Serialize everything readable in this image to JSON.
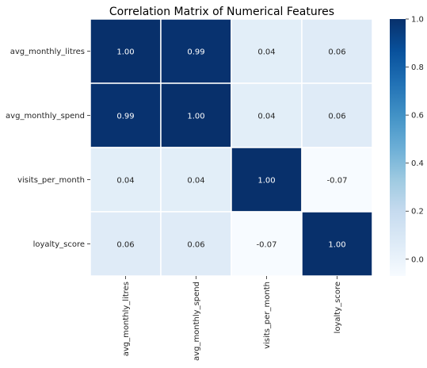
{
  "chart_data": {
    "type": "heatmap",
    "title": "Correlation Matrix of Numerical Features",
    "xlabels": [
      "avg_monthly_litres",
      "avg_monthly_spend",
      "visits_per_month",
      "loyalty_score"
    ],
    "ylabels": [
      "avg_monthly_litres",
      "avg_monthly_spend",
      "visits_per_month",
      "loyalty_score"
    ],
    "values": [
      [
        1.0,
        0.99,
        0.04,
        0.06
      ],
      [
        0.99,
        1.0,
        0.04,
        0.06
      ],
      [
        0.04,
        0.04,
        1.0,
        -0.07
      ],
      [
        0.06,
        0.06,
        -0.07,
        1.0
      ]
    ],
    "annotations": [
      [
        "1.00",
        "0.99",
        "0.04",
        "0.06"
      ],
      [
        "0.99",
        "1.00",
        "0.04",
        "0.06"
      ],
      [
        "0.04",
        "0.04",
        "1.00",
        "-0.07"
      ],
      [
        "0.06",
        "0.06",
        "-0.07",
        "1.00"
      ]
    ],
    "colormap": "Blues",
    "vmin": -0.07,
    "vmax": 1.0,
    "colorbar_ticks": [
      1.0,
      0.8,
      0.6,
      0.4,
      0.2,
      0.0
    ],
    "colorbar_tick_labels": [
      "1.0",
      "0.8",
      "0.6",
      "0.4",
      "0.2",
      "0.0"
    ],
    "cell_border_color": "#ffffff"
  }
}
